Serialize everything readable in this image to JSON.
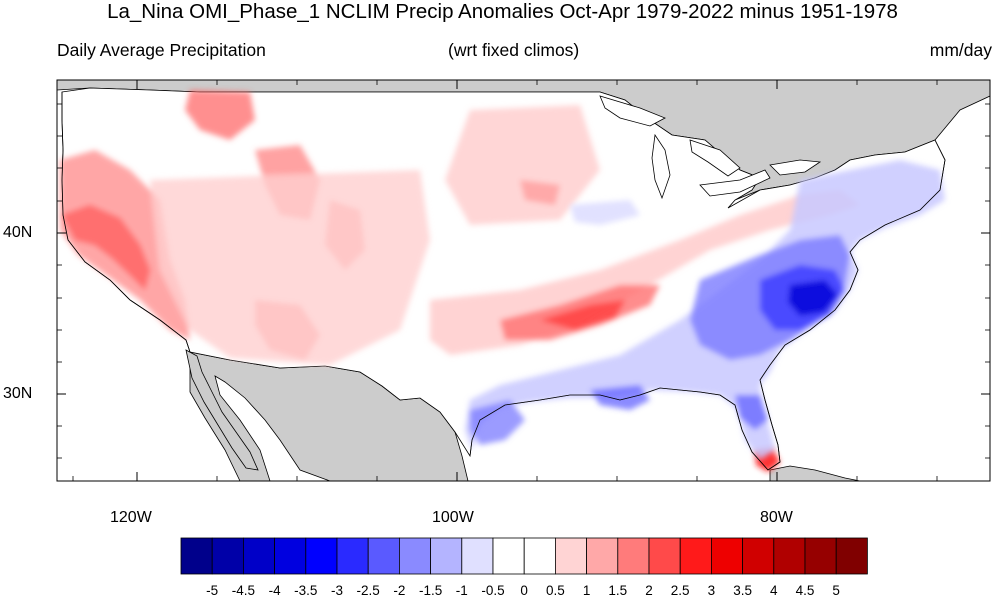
{
  "title": "La_Nina OMI_Phase_1 NCLIM Precip Anomalies Oct-Apr 1979-2022 minus 1951-1978",
  "subtitle_left": "Daily Average Precipitation",
  "subtitle_center": "(wrt fixed climos)",
  "subtitle_right": "mm/day",
  "lat_labels": [
    "40N",
    "30N"
  ],
  "lon_labels": [
    "120W",
    "100W",
    "80W"
  ],
  "colorbar": {
    "labels": [
      "-5",
      "-4.5",
      "-4",
      "-3.5",
      "-3",
      "-2.5",
      "-2",
      "-1.5",
      "-1",
      "-0.5",
      "0",
      "0.5",
      "1",
      "1.5",
      "2",
      "2.5",
      "3",
      "3.5",
      "4",
      "4.5",
      "5"
    ],
    "colors": [
      "#00008b",
      "#0000a8",
      "#0000c8",
      "#0000e0",
      "#0000ff",
      "#2a2aff",
      "#5a5aff",
      "#8a8aff",
      "#b4b4ff",
      "#e0e0ff",
      "#ffffff",
      "#ffffff",
      "#ffd4d4",
      "#ffa8a8",
      "#ff7b7b",
      "#ff4a4a",
      "#ff1a1a",
      "#ee0000",
      "#d00000",
      "#b00000",
      "#960000",
      "#800000"
    ]
  },
  "map": {
    "ocean_color": "#ffffff",
    "land_outside_color": "#cccccc",
    "positive_anomaly_color": "#ff5050",
    "negative_anomaly_color": "#4455ee"
  }
}
